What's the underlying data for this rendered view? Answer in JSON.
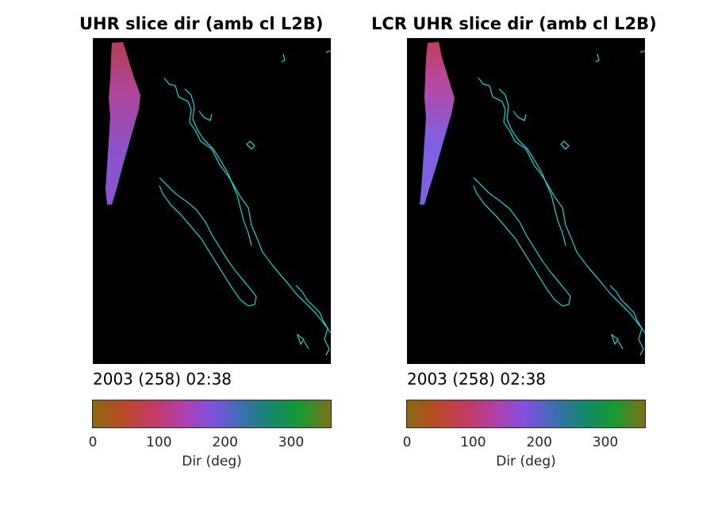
{
  "chart_data": [
    {
      "type": "heatmap",
      "title": "UHR slice dir (amb cl L2B)",
      "timestamp": "2003 (258) 02:38",
      "colorbar": {
        "label": "Dir (deg)",
        "range": [
          0,
          360
        ],
        "ticks": [
          0,
          100,
          200,
          300
        ],
        "colormap": [
          "#8a6a10",
          "#b84a24",
          "#c43a60",
          "#b040a8",
          "#8050e0",
          "#3a70b0",
          "#128868",
          "#1a9a30",
          "#807018"
        ]
      },
      "swath_colors": [
        "#c0405a",
        "#b848a0",
        "#9058d8"
      ],
      "coastline_color": "#00ffff",
      "background": "#000000"
    },
    {
      "type": "heatmap",
      "title": "LCR UHR slice dir (amb cl L2B)",
      "timestamp": "2003 (258) 02:38",
      "colorbar": {
        "label": "Dir (deg)",
        "range": [
          0,
          360
        ],
        "ticks": [
          0,
          100,
          200,
          300
        ],
        "colormap": [
          "#8a6a10",
          "#b84a24",
          "#c43a60",
          "#b040a8",
          "#8050e0",
          "#3a70b0",
          "#128868",
          "#1a9a30",
          "#807018"
        ]
      },
      "swath_colors": [
        "#c0405a",
        "#b848a0",
        "#8060e0"
      ],
      "coastline_color": "#00ffff",
      "background": "#000000"
    }
  ]
}
